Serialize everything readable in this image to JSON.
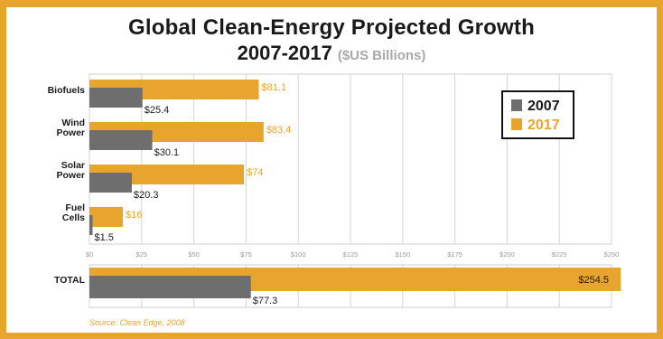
{
  "title": "Global Clean-Energy Projected Growth",
  "title_line2": "2007-2017",
  "subtitle": "($US Billions)",
  "source": "Source: Clean Edge, 2008",
  "colors": {
    "series_2007": "#6e6e6e",
    "series_2017": "#e8a52e",
    "label_2017": "#e8a52e",
    "frame": "#e8a52e",
    "grid": "#d4d4d4"
  },
  "chart_data": {
    "type": "bar",
    "orientation": "horizontal",
    "categories": [
      "Biofuels",
      "Wind Power",
      "Solar Power",
      "Fuel Cells"
    ],
    "series": [
      {
        "name": "2007",
        "values": [
          25.4,
          30.1,
          20.3,
          1.5
        ]
      },
      {
        "name": "2017",
        "values": [
          81.1,
          83.4,
          74,
          16
        ]
      }
    ],
    "value_labels": {
      "2007": [
        "$25.4",
        "$30.1",
        "$20.3",
        "$1.5"
      ],
      "2017": [
        "$81.1",
        "$83.4",
        "$74",
        "$16"
      ]
    },
    "xlim": [
      0,
      250
    ],
    "xticks": [
      0,
      25,
      50,
      75,
      100,
      125,
      150,
      175,
      200,
      225,
      250
    ],
    "xtick_labels": [
      "$0",
      "$25",
      "$50",
      "$75",
      "$100",
      "$125",
      "$150",
      "$175",
      "$200",
      "$225",
      "$250"
    ],
    "grid": true,
    "legend_position": "top-right",
    "total": {
      "label": "TOTAL",
      "values": {
        "2007": 77.3,
        "2017": 254.5
      },
      "value_labels": {
        "2007": "$77.3",
        "2017": "$254.5"
      }
    }
  }
}
